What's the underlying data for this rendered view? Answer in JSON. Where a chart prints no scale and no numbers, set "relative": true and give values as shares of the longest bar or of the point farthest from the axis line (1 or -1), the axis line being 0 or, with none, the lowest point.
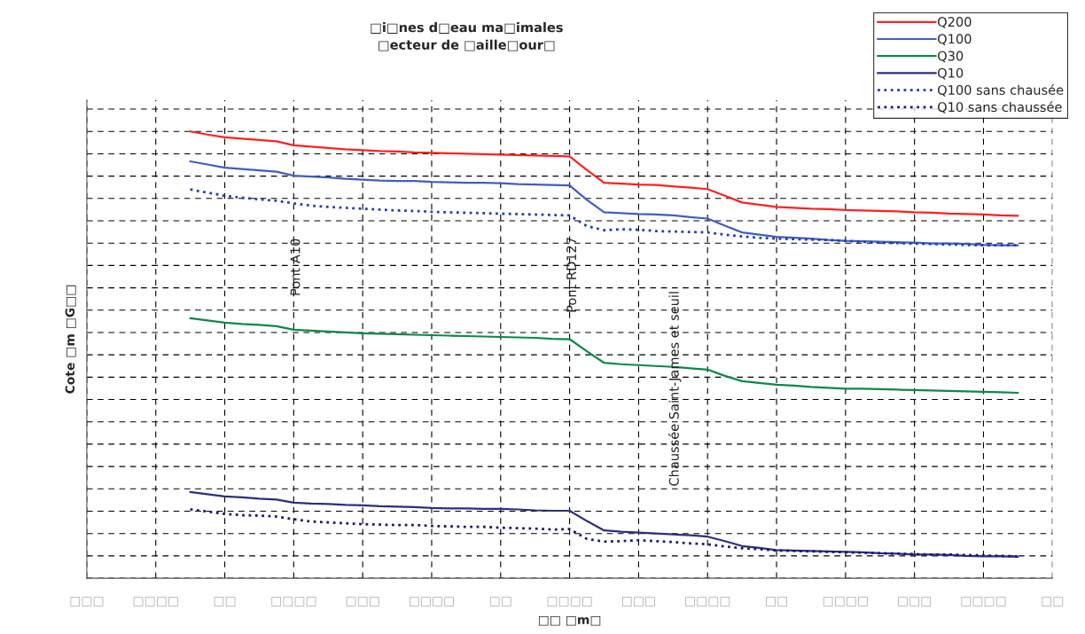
{
  "chart_data": {
    "type": "line",
    "relative": true,
    "title": "□i□nes d□eau ma□imales\n□ecteur de □aille□our□",
    "xlabel": "□□ □m□",
    "ylabel": "Cote □m □G□□",
    "categories": [
      "□□□",
      null,
      null,
      null,
      "□□□□",
      null,
      null,
      null,
      "□□",
      null,
      null,
      null,
      "□□□□",
      null,
      null,
      null,
      "□□□",
      null,
      null,
      null,
      "□□□□",
      null,
      null,
      null,
      "□□",
      null,
      null,
      null,
      "□□□□",
      null,
      null,
      null,
      "□□□",
      null,
      null,
      null,
      "□□□□",
      null,
      null,
      null,
      "□□",
      null,
      null,
      null,
      "□□□□",
      null,
      null,
      null,
      "□□□",
      null,
      null,
      null,
      "□□□□",
      null,
      null,
      null,
      "□□"
    ],
    "grid": true,
    "legend": "top right",
    "series": [
      {
        "name": "Q200",
        "color": "#ff2020",
        "line_style": "solid",
        "values": [
          null,
          null,
          null,
          null,
          null,
          null,
          1.0,
          0.993,
          0.987,
          0.984,
          0.981,
          0.978,
          0.969,
          0.966,
          0.963,
          0.96,
          0.958,
          0.956,
          0.955,
          0.953,
          0.952,
          0.951,
          0.95,
          0.949,
          0.948,
          0.947,
          0.946,
          0.945,
          0.944,
          0.914,
          0.885,
          0.883,
          0.881,
          0.88,
          0.877,
          0.874,
          0.871,
          0.856,
          0.841,
          0.836,
          0.831,
          0.829,
          0.827,
          0.826,
          0.824,
          0.823,
          0.822,
          0.821,
          0.819,
          0.818,
          0.816,
          0.815,
          0.814,
          0.812,
          0.811,
          null,
          null
        ]
      },
      {
        "name": "Q100",
        "color": "#3f5fbf",
        "line_style": "solid",
        "values": [
          null,
          null,
          null,
          null,
          null,
          null,
          0.933,
          0.926,
          0.919,
          0.916,
          0.913,
          0.91,
          0.901,
          0.899,
          0.897,
          0.894,
          0.892,
          0.89,
          0.889,
          0.889,
          0.887,
          0.886,
          0.885,
          0.885,
          0.884,
          0.882,
          0.881,
          0.88,
          0.879,
          0.847,
          0.819,
          0.817,
          0.815,
          0.814,
          0.812,
          0.808,
          0.805,
          0.789,
          0.774,
          0.769,
          0.764,
          0.762,
          0.76,
          0.757,
          0.755,
          0.754,
          0.753,
          0.752,
          0.751,
          0.749,
          0.749,
          0.748,
          0.746,
          0.745,
          0.745,
          null,
          null
        ]
      },
      {
        "name": "Q30",
        "color": "#0a8a45",
        "line_style": "solid",
        "values": [
          null,
          null,
          null,
          null,
          null,
          null,
          0.582,
          0.577,
          0.572,
          0.569,
          0.567,
          0.564,
          0.556,
          0.554,
          0.552,
          0.55,
          0.548,
          0.547,
          0.546,
          0.545,
          0.544,
          0.543,
          0.542,
          0.541,
          0.54,
          0.539,
          0.538,
          0.536,
          0.535,
          0.508,
          0.482,
          0.479,
          0.477,
          0.475,
          0.473,
          0.47,
          0.467,
          0.453,
          0.441,
          0.437,
          0.433,
          0.431,
          0.428,
          0.426,
          0.424,
          0.424,
          0.423,
          0.422,
          0.421,
          0.42,
          0.419,
          0.418,
          0.417,
          0.416,
          0.415,
          null,
          null
        ]
      },
      {
        "name": "Q10",
        "color": "#2b2f7f",
        "line_style": "solid",
        "values": [
          null,
          null,
          null,
          null,
          null,
          null,
          0.193,
          0.188,
          0.183,
          0.181,
          0.178,
          0.176,
          0.169,
          0.167,
          0.166,
          0.164,
          0.163,
          0.161,
          0.16,
          0.159,
          0.157,
          0.156,
          0.156,
          0.155,
          0.155,
          0.154,
          0.152,
          0.151,
          0.151,
          0.128,
          0.107,
          0.104,
          0.102,
          0.1,
          0.098,
          0.096,
          0.093,
          0.083,
          0.072,
          0.068,
          0.063,
          0.062,
          0.061,
          0.06,
          0.059,
          0.058,
          0.056,
          0.055,
          0.053,
          0.053,
          0.052,
          0.05,
          0.049,
          0.049,
          0.048,
          null,
          null
        ]
      },
      {
        "name": "Q100 sans chausée",
        "color": "#1f3faf",
        "line_style": "dotted",
        "values": [
          null,
          null,
          null,
          null,
          null,
          null,
          0.87,
          0.863,
          0.856,
          0.852,
          0.848,
          0.845,
          0.839,
          0.834,
          0.831,
          0.829,
          0.827,
          0.825,
          0.823,
          0.822,
          0.82,
          0.819,
          0.818,
          0.817,
          0.816,
          0.815,
          0.814,
          0.813,
          0.812,
          0.788,
          0.779,
          0.781,
          0.78,
          0.777,
          0.776,
          0.775,
          0.774,
          0.769,
          0.765,
          0.762,
          0.76,
          0.759,
          0.758,
          0.757,
          0.755,
          0.753,
          0.751,
          0.75,
          0.749,
          0.748,
          0.747,
          0.746,
          0.745,
          0.745,
          0.745,
          null,
          null
        ]
      },
      {
        "name": "Q10 sans chaussée",
        "color": "#1a1a6e",
        "line_style": "dotted",
        "values": [
          null,
          null,
          null,
          null,
          null,
          null,
          0.154,
          0.149,
          0.144,
          0.141,
          0.14,
          0.138,
          0.132,
          0.127,
          0.125,
          0.123,
          0.121,
          0.12,
          0.119,
          0.119,
          0.117,
          0.116,
          0.115,
          0.115,
          0.113,
          0.112,
          0.111,
          0.109,
          0.11,
          0.088,
          0.082,
          0.083,
          0.085,
          0.083,
          0.081,
          0.078,
          0.076,
          0.071,
          0.067,
          0.065,
          0.062,
          0.061,
          0.06,
          0.059,
          0.058,
          0.057,
          0.056,
          0.055,
          0.054,
          0.053,
          0.053,
          0.052,
          0.051,
          0.05,
          0.049,
          null,
          null
        ]
      }
    ],
    "annotations": [
      "Pont A10",
      "Pont RD127",
      "Chaussée Saint-James et seuil"
    ]
  }
}
